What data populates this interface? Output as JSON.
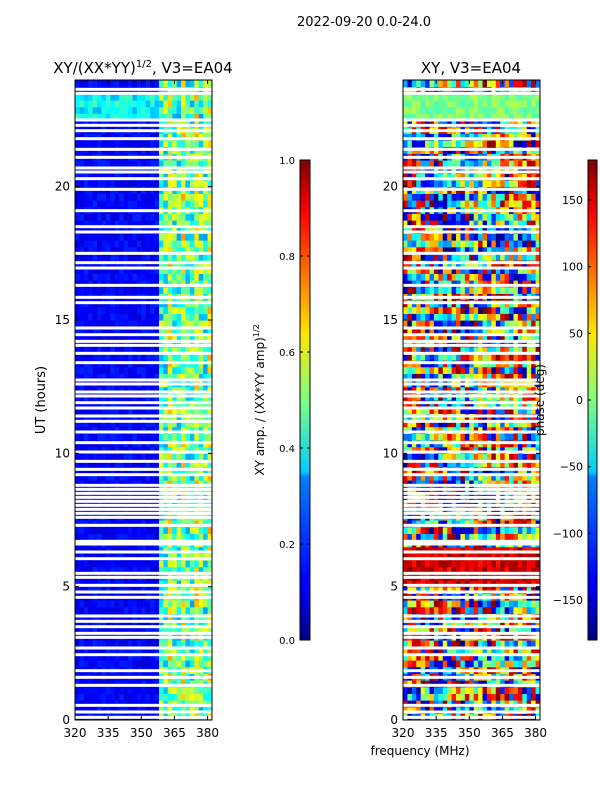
{
  "figure_title": "2022-09-20 0.0-24.0",
  "shared_xlabel": "frequency (MHz)",
  "chart_data": [
    {
      "type": "heatmap",
      "title": "XY/(XX*YY)",
      "title_exponent": "1/2",
      "title_suffix": ", V3=EA04",
      "xlabel": "",
      "ylabel": "UT (hours)",
      "xlim": [
        320,
        382
      ],
      "ylim": [
        0,
        24
      ],
      "x_ticks": [
        320,
        335,
        350,
        365,
        380
      ],
      "y_ticks": [
        0,
        5,
        10,
        15,
        20
      ],
      "colorbar": {
        "label": "XY amp. / (XX*YY amp)",
        "label_exponent": "1/2",
        "range": [
          0.0,
          1.0
        ],
        "ticks": [
          "0.0",
          "0.2",
          "0.4",
          "0.6",
          "0.8",
          "1.0"
        ],
        "colormap": "jet"
      },
      "band_summary": {
        "low_freq_mean": 0.08,
        "high_freq_mean": 0.45,
        "high_freq_start_mhz": 359,
        "bright_top_rows_ut": [
          22.6,
          23.4
        ]
      }
    },
    {
      "type": "heatmap",
      "title": "XY, V3=EA04",
      "xlabel": "frequency (MHz)",
      "ylabel": "",
      "xlim": [
        320,
        382
      ],
      "ylim": [
        0,
        24
      ],
      "x_ticks": [
        320,
        335,
        350,
        365,
        380
      ],
      "y_ticks": [
        0,
        5,
        10,
        15,
        20
      ],
      "colorbar": {
        "label": "phase (deg)",
        "range": [
          -180,
          180
        ],
        "ticks": [
          "−150",
          "−100",
          "−50",
          "0",
          "50",
          "100",
          "150"
        ],
        "tick_values": [
          -150,
          -100,
          -50,
          0,
          50,
          100,
          150
        ],
        "colormap": "jet"
      }
    }
  ],
  "flagged_rows_ut": [
    0.1,
    0.3,
    0.55,
    1.3,
    1.6,
    1.85,
    2.45,
    2.7,
    3.1,
    3.25,
    3.5,
    3.7,
    3.9,
    4.6,
    4.8,
    5.05,
    5.35,
    5.5,
    6.05,
    6.3,
    6.6,
    6.7,
    7.3,
    7.6,
    7.75,
    7.9,
    8.05,
    8.2,
    8.35,
    8.5,
    8.65,
    8.8,
    9.2,
    9.4,
    9.7,
    10.05,
    10.4,
    10.8,
    11.2,
    11.4,
    11.7,
    11.9,
    12.15,
    12.3,
    12.6,
    12.75,
    13.4,
    13.75,
    14.05,
    14.2,
    14.45,
    14.7,
    15.65,
    15.85,
    16.3,
    16.95,
    17.15,
    17.5,
    18.3,
    18.5,
    19.1,
    19.9,
    20.3,
    20.55,
    20.7,
    21.1,
    21.4,
    21.8,
    22.1,
    22.3,
    22.5,
    23.5,
    23.65
  ]
}
